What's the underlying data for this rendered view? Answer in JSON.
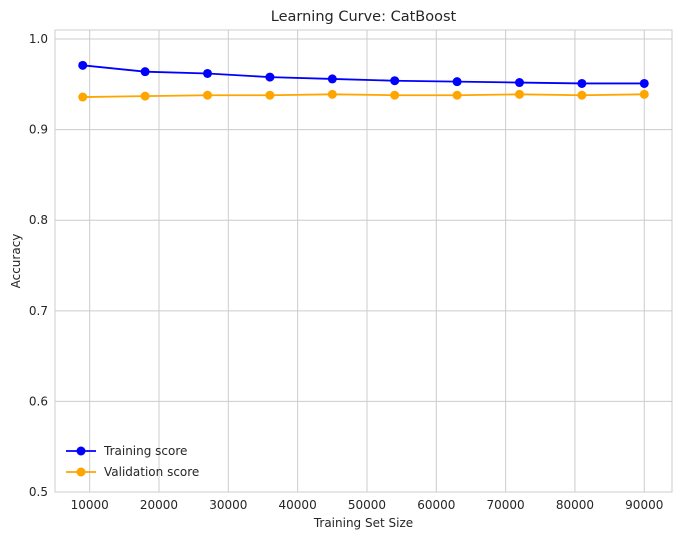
{
  "chart_data": {
    "type": "line",
    "title": "Learning Curve: CatBoost",
    "xlabel": "Training Set Size",
    "ylabel": "Accuracy",
    "xlim": [
      5000,
      94000
    ],
    "ylim": [
      0.5,
      1.01
    ],
    "xticks": [
      10000,
      20000,
      30000,
      40000,
      50000,
      60000,
      70000,
      80000,
      90000
    ],
    "yticks": [
      0.5,
      0.6,
      0.7,
      0.8,
      0.9,
      1.0
    ],
    "ytick_labels": [
      "0.5",
      "0.6",
      "0.7",
      "0.8",
      "0.9",
      "1.0"
    ],
    "grid": true,
    "legend_position": "lower-left",
    "x": [
      9000,
      18000,
      27000,
      36000,
      45000,
      54000,
      63000,
      72000,
      81000,
      90000
    ],
    "series": [
      {
        "name": "Training score",
        "color": "#0000ff",
        "values": [
          0.971,
          0.964,
          0.962,
          0.958,
          0.956,
          0.954,
          0.953,
          0.952,
          0.951,
          0.951
        ]
      },
      {
        "name": "Validation score",
        "color": "#ffa500",
        "values": [
          0.936,
          0.937,
          0.938,
          0.938,
          0.939,
          0.938,
          0.938,
          0.939,
          0.938,
          0.939
        ]
      }
    ]
  }
}
